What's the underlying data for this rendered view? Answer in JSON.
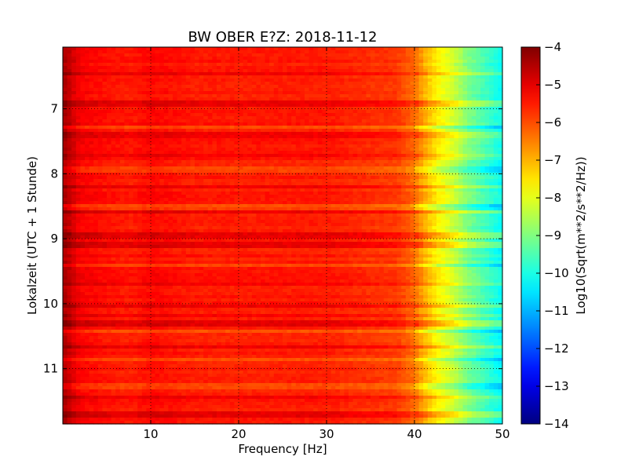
{
  "chart_data": {
    "type": "heatmap",
    "title": "BW OBER E?Z: 2018-11-12",
    "xlabel": "Frequency [Hz]",
    "ylabel": "Lokalzeit (UTC + 1 Stunde)",
    "colorbar_label": "Log10(Sqrt(m**2/s**2/Hz))",
    "colormap": "jet",
    "xlim": [
      0,
      50
    ],
    "ylim": [
      11.85,
      6.05
    ],
    "y_inverted": true,
    "x_ticks": [
      10,
      20,
      30,
      40,
      50
    ],
    "y_ticks": [
      7,
      8,
      9,
      10,
      11
    ],
    "x_tick_labels": [
      "10",
      "20",
      "30",
      "40",
      "50"
    ],
    "y_tick_labels": [
      "7",
      "8",
      "9",
      "10",
      "11"
    ],
    "clim": [
      -14,
      -4
    ],
    "colorbar_ticks": [
      -4,
      -5,
      -6,
      -7,
      -8,
      -9,
      -10,
      -11,
      -12,
      -13,
      -14
    ],
    "colorbar_tick_labels": [
      "−4",
      "−5",
      "−6",
      "−7",
      "−8",
      "−9",
      "−10",
      "−11",
      "−12",
      "−13",
      "−14"
    ],
    "grid": true,
    "grid_style": "dotted",
    "spectrum_profile": {
      "frequency_hz": [
        0,
        1,
        2,
        5,
        8,
        10,
        15,
        20,
        25,
        30,
        35,
        38,
        40,
        41,
        42,
        43,
        44,
        45,
        46,
        47,
        48,
        49,
        50
      ],
      "log10_amplitude": [
        -4.4,
        -4.8,
        -5.2,
        -5.4,
        -5.5,
        -5.3,
        -5.5,
        -5.5,
        -5.5,
        -5.5,
        -5.7,
        -5.8,
        -6.3,
        -6.9,
        -7.4,
        -7.8,
        -8.1,
        -8.5,
        -9.0,
        -9.3,
        -9.6,
        -9.9,
        -10.2
      ]
    },
    "quiet_band_times": [
      7.28,
      7.93,
      8.52,
      9.42,
      10.42,
      10.87,
      11.28
    ],
    "loud_band_times": [
      6.45,
      6.92,
      7.4,
      7.7,
      8.2,
      8.58,
      8.95,
      9.1,
      9.7,
      10.05,
      10.2,
      10.3,
      10.65,
      11.45,
      11.7
    ]
  }
}
